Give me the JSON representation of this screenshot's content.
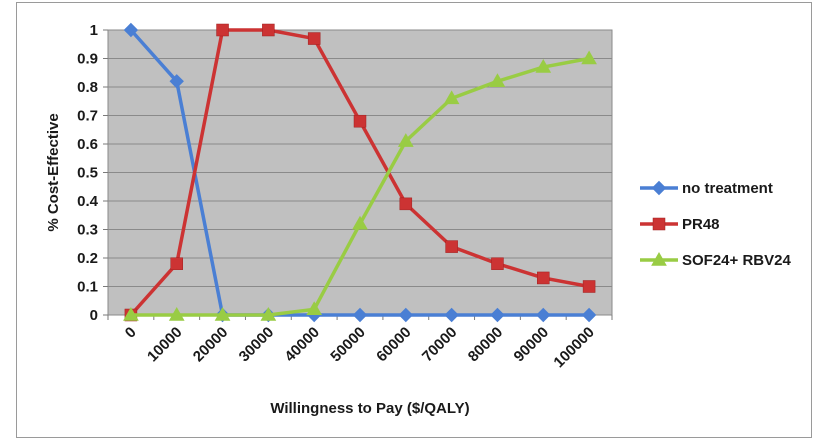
{
  "chart_data": {
    "type": "line",
    "title": "",
    "xlabel": "Willingness to Pay ($/QALY)",
    "ylabel": "% Cost-Effective",
    "categories": [
      "0",
      "10000",
      "20000",
      "30000",
      "40000",
      "50000",
      "60000",
      "70000",
      "80000",
      "90000",
      "100000"
    ],
    "y_ticks": [
      "0",
      "0.1",
      "0.2",
      "0.3",
      "0.4",
      "0.5",
      "0.6",
      "0.7",
      "0.8",
      "0.9",
      "1"
    ],
    "ylim": [
      0,
      1
    ],
    "grid": true,
    "legend_position": "right",
    "plot_background": "#c0c0c0",
    "series": [
      {
        "name": "no treatment",
        "color": "#4a7fd4",
        "marker": "diamond",
        "values": [
          1,
          0.82,
          0,
          0,
          0,
          0,
          0,
          0,
          0,
          0,
          0
        ]
      },
      {
        "name": "PR48",
        "color": "#cc3333",
        "marker": "square",
        "values": [
          0,
          0.18,
          1,
          1,
          0.97,
          0.68,
          0.39,
          0.24,
          0.18,
          0.13,
          0.1
        ]
      },
      {
        "name": "SOF24+ RBV24",
        "color": "#99cc44",
        "marker": "triangle",
        "values": [
          0,
          0,
          0,
          0,
          0.02,
          0.32,
          0.61,
          0.76,
          0.82,
          0.87,
          0.9
        ]
      }
    ]
  }
}
